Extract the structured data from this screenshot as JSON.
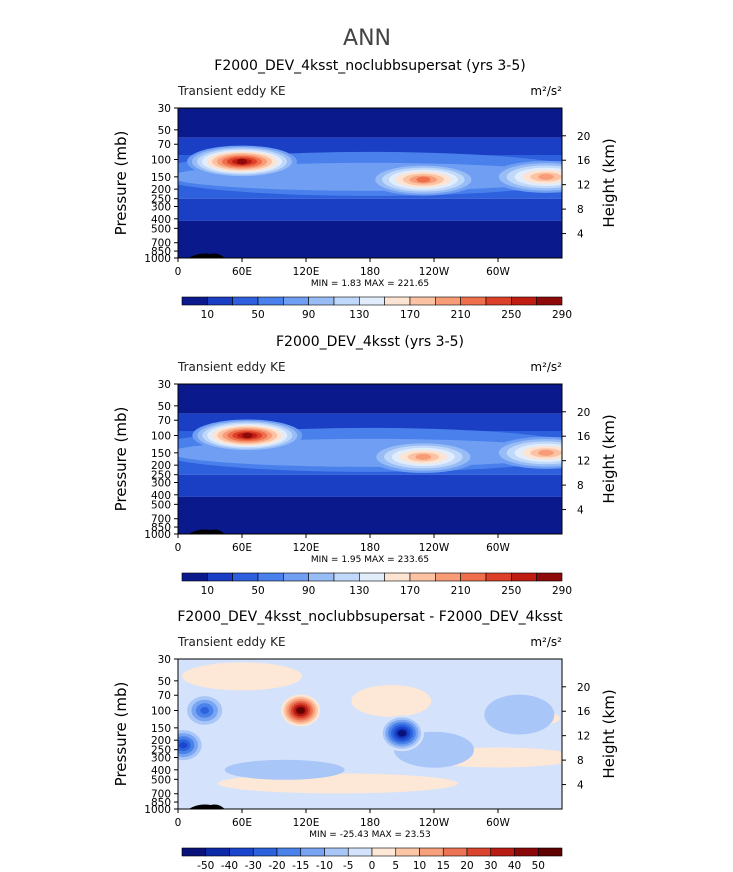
{
  "figure_title": "ANN",
  "chart_data": [
    {
      "type": "heatmap",
      "title": "F2000_DEV_4ksst_noclubbsupersat (yrs 3-5)",
      "subtitle": "Transient eddy KE",
      "units": "m²/s²",
      "xlabel": "",
      "ylabel": "Pressure (mb)",
      "y2label": "Height (km)",
      "x_ticks": [
        "0",
        "60E",
        "120E",
        "180",
        "120W",
        "60W"
      ],
      "y_ticks": [
        "30",
        "50",
        "70",
        "100",
        "150",
        "200",
        "250",
        "300",
        "400",
        "500",
        "700",
        "850",
        "1000"
      ],
      "y2_ticks": [
        "20",
        "16",
        "12",
        "8",
        "4"
      ],
      "ylim": [
        1000,
        30
      ],
      "y_scale": "log",
      "min": 1.83,
      "max": 221.65,
      "stats_label": "MIN =    1.83   MAX = 221.65",
      "colorbar_levels": [
        "10",
        "50",
        "90",
        "130",
        "170",
        "210",
        "250",
        "290"
      ],
      "colorbar_colors": [
        "#0a1a8c",
        "#1a3fc4",
        "#2e5fdc",
        "#4a80ec",
        "#6f9ef2",
        "#98bcf6",
        "#c0d8fa",
        "#e2edfc",
        "#fde4d2",
        "#fbc3a3",
        "#f79c76",
        "#ef6e4c",
        "#dd4028",
        "#c01d12",
        "#8e0a0a"
      ],
      "features": [
        {
          "lon": 60,
          "p": 105,
          "value": 221.65
        },
        {
          "lon": 230,
          "p": 160,
          "value": 170
        },
        {
          "lon": 345,
          "p": 150,
          "value": 165
        }
      ]
    },
    {
      "type": "heatmap",
      "title": "F2000_DEV_4ksst (yrs 3-5)",
      "subtitle": "Transient eddy KE",
      "units": "m²/s²",
      "xlabel": "",
      "ylabel": "Pressure (mb)",
      "y2label": "Height (km)",
      "x_ticks": [
        "0",
        "60E",
        "120E",
        "180",
        "120W",
        "60W"
      ],
      "y_ticks": [
        "30",
        "50",
        "70",
        "100",
        "150",
        "200",
        "250",
        "300",
        "400",
        "500",
        "700",
        "850",
        "1000"
      ],
      "y2_ticks": [
        "20",
        "16",
        "12",
        "8",
        "4"
      ],
      "ylim": [
        1000,
        30
      ],
      "y_scale": "log",
      "min": 1.95,
      "max": 233.65,
      "stats_label": "MIN =    1.95   MAX = 233.65",
      "colorbar_levels": [
        "10",
        "50",
        "90",
        "130",
        "170",
        "210",
        "250",
        "290"
      ],
      "colorbar_colors": [
        "#0a1a8c",
        "#1a3fc4",
        "#2e5fdc",
        "#4a80ec",
        "#6f9ef2",
        "#98bcf6",
        "#c0d8fa",
        "#e2edfc",
        "#fde4d2",
        "#fbc3a3",
        "#f79c76",
        "#ef6e4c",
        "#dd4028",
        "#c01d12",
        "#8e0a0a"
      ],
      "features": [
        {
          "lon": 65,
          "p": 100,
          "value": 233.65
        },
        {
          "lon": 230,
          "p": 165,
          "value": 175
        },
        {
          "lon": 345,
          "p": 150,
          "value": 170
        }
      ]
    },
    {
      "type": "heatmap",
      "title": "F2000_DEV_4ksst_noclubbsupersat - F2000_DEV_4ksst",
      "subtitle": "Transient eddy KE",
      "units": "m²/s²",
      "xlabel": "",
      "ylabel": "Pressure (mb)",
      "y2label": "Height (km)",
      "x_ticks": [
        "0",
        "60E",
        "120E",
        "180",
        "120W",
        "60W"
      ],
      "y_ticks": [
        "30",
        "50",
        "70",
        "100",
        "150",
        "200",
        "250",
        "300",
        "400",
        "500",
        "700",
        "850",
        "1000"
      ],
      "y2_ticks": [
        "20",
        "16",
        "12",
        "8",
        "4"
      ],
      "ylim": [
        1000,
        30
      ],
      "y_scale": "log",
      "min": -25.43,
      "max": 23.53,
      "stats_label": "MIN = -25.43   MAX =  23.53",
      "colorbar_levels": [
        "-50",
        "-40",
        "-30",
        "-20",
        "-15",
        "-10",
        "-5",
        "0",
        "5",
        "10",
        "15",
        "20",
        "30",
        "40",
        "50"
      ],
      "colorbar_colors": [
        "#08127a",
        "#0d2aa8",
        "#1a45cc",
        "#2c62dc",
        "#4b82ea",
        "#78a4f2",
        "#a8c6f8",
        "#d4e3fb",
        "#fde7d6",
        "#fbc6a6",
        "#f6a17c",
        "#ec7354",
        "#d9452e",
        "#b91c14",
        "#8a0808",
        "#5e0202"
      ],
      "features": [
        {
          "lon": 25,
          "p": 100,
          "value": -15
        },
        {
          "lon": 5,
          "p": 225,
          "value": -20
        },
        {
          "lon": 115,
          "p": 100,
          "value": 23.53
        },
        {
          "lon": 210,
          "p": 170,
          "value": -25.43
        }
      ]
    }
  ]
}
